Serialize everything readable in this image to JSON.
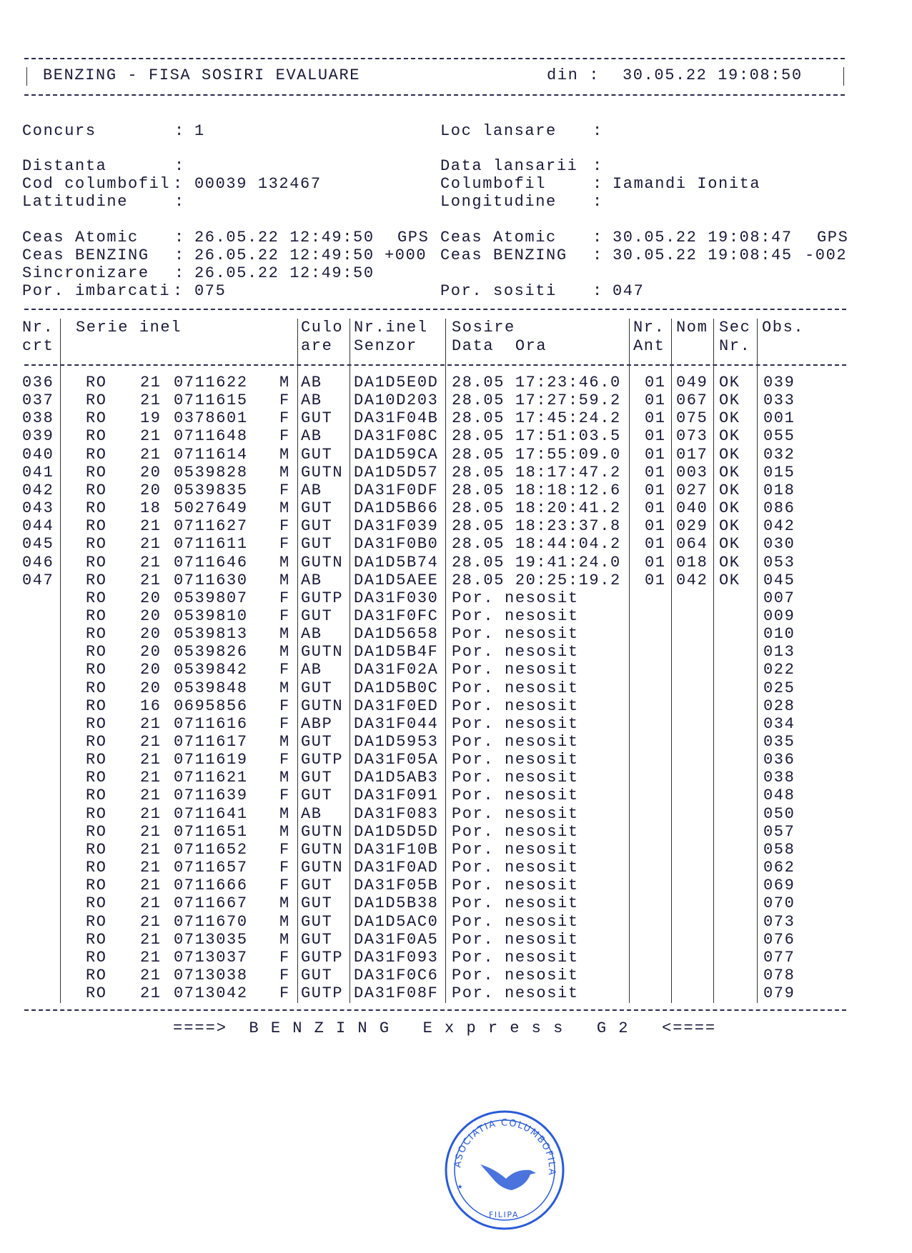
{
  "header": {
    "title": "BENZING - FISA SOSIRI EVALUARE",
    "din_label": "din :",
    "din_value": "30.05.22 19:08:50"
  },
  "info": {
    "concurs": {
      "label": "Concurs",
      "value": "1"
    },
    "loc_lansare": {
      "label": "Loc lansare",
      "value": ""
    },
    "distanta": {
      "label": "Distanta",
      "value": ""
    },
    "data_lansarii": {
      "label": "Data lansarii",
      "value": ""
    },
    "cod_columbofil": {
      "label": "Cod columbofil",
      "value": "00039 132467"
    },
    "columbofil": {
      "label": "Columbofil",
      "value": "Iamandi Ionita"
    },
    "latitudine": {
      "label": "Latitudine",
      "value": ""
    },
    "longitudine": {
      "label": "Longitudine",
      "value": ""
    },
    "ceas_atomic_start": {
      "label": "Ceas Atomic",
      "value": "26.05.22 12:49:50",
      "suffix": "GPS"
    },
    "ceas_benzing_start": {
      "label": "Ceas BENZING",
      "value": "26.05.22 12:49:50",
      "suffix": "+000"
    },
    "ceas_atomic_end": {
      "label": "Ceas Atomic",
      "value": "30.05.22 19:08:47",
      "suffix": "GPS"
    },
    "ceas_benzing_end": {
      "label": "Ceas BENZING",
      "value": "30.05.22 19:08:45",
      "suffix": "-002"
    },
    "sincronizare": {
      "label": "Sincronizare",
      "value": "26.05.22 12:49:50"
    },
    "por_imbarcati": {
      "label": "Por. imbarcati",
      "value": "075"
    },
    "por_sositi": {
      "label": "Por. sositi",
      "value": "047"
    }
  },
  "table": {
    "headers": {
      "nr1": "Nr.",
      "nr2": "crt",
      "serie": "Serie inel",
      "cul1": "Culo",
      "cul2": "are",
      "sen1": "Nr.inel",
      "sen2": "Senzor",
      "sos1": "Sosire",
      "sos2": "Data  Ora",
      "ant1": "Nr.",
      "ant2": "Ant",
      "nom": "Nom",
      "sec1": "Sec",
      "sec2": "Nr.",
      "obs": "Obs."
    },
    "rows": [
      [
        "036",
        "RO",
        "21",
        "0711622",
        "M",
        "AB",
        "DA1D5E0D",
        "28.05 17:23:46.0",
        "01",
        "049",
        "OK",
        "039"
      ],
      [
        "037",
        "RO",
        "21",
        "0711615",
        "F",
        "AB",
        "DA10D203",
        "28.05 17:27:59.2",
        "01",
        "067",
        "OK",
        "033"
      ],
      [
        "038",
        "RO",
        "19",
        "0378601",
        "F",
        "GUT",
        "DA31F04B",
        "28.05 17:45:24.2",
        "01",
        "075",
        "OK",
        "001"
      ],
      [
        "039",
        "RO",
        "21",
        "0711648",
        "F",
        "AB",
        "DA31F08C",
        "28.05 17:51:03.5",
        "01",
        "073",
        "OK",
        "055"
      ],
      [
        "040",
        "RO",
        "21",
        "0711614",
        "M",
        "GUT",
        "DA1D59CA",
        "28.05 17:55:09.0",
        "01",
        "017",
        "OK",
        "032"
      ],
      [
        "041",
        "RO",
        "20",
        "0539828",
        "M",
        "GUTN",
        "DA1D5D57",
        "28.05 18:17:47.2",
        "01",
        "003",
        "OK",
        "015"
      ],
      [
        "042",
        "RO",
        "20",
        "0539835",
        "F",
        "AB",
        "DA31F0DF",
        "28.05 18:18:12.6",
        "01",
        "027",
        "OK",
        "018"
      ],
      [
        "043",
        "RO",
        "18",
        "5027649",
        "M",
        "GUT",
        "DA1D5B66",
        "28.05 18:20:41.2",
        "01",
        "040",
        "OK",
        "086"
      ],
      [
        "044",
        "RO",
        "21",
        "0711627",
        "F",
        "GUT",
        "DA31F039",
        "28.05 18:23:37.8",
        "01",
        "029",
        "OK",
        "042"
      ],
      [
        "045",
        "RO",
        "21",
        "0711611",
        "F",
        "GUT",
        "DA31F0B0",
        "28.05 18:44:04.2",
        "01",
        "064",
        "OK",
        "030"
      ],
      [
        "046",
        "RO",
        "21",
        "0711646",
        "M",
        "GUTN",
        "DA1D5B74",
        "28.05 19:41:24.0",
        "01",
        "018",
        "OK",
        "053"
      ],
      [
        "047",
        "RO",
        "21",
        "0711630",
        "M",
        "AB",
        "DA1D5AEE",
        "28.05 20:25:19.2",
        "01",
        "042",
        "OK",
        "045"
      ],
      [
        "",
        "RO",
        "20",
        "0539807",
        "F",
        "GUTP",
        "DA31F030",
        "Por. nesosit",
        "",
        "",
        "",
        "007"
      ],
      [
        "",
        "RO",
        "20",
        "0539810",
        "F",
        "GUT",
        "DA31F0FC",
        "Por. nesosit",
        "",
        "",
        "",
        "009"
      ],
      [
        "",
        "RO",
        "20",
        "0539813",
        "M",
        "AB",
        "DA1D5658",
        "Por. nesosit",
        "",
        "",
        "",
        "010"
      ],
      [
        "",
        "RO",
        "20",
        "0539826",
        "M",
        "GUTN",
        "DA1D5B4F",
        "Por. nesosit",
        "",
        "",
        "",
        "013"
      ],
      [
        "",
        "RO",
        "20",
        "0539842",
        "F",
        "AB",
        "DA31F02A",
        "Por. nesosit",
        "",
        "",
        "",
        "022"
      ],
      [
        "",
        "RO",
        "20",
        "0539848",
        "M",
        "GUT",
        "DA1D5B0C",
        "Por. nesosit",
        "",
        "",
        "",
        "025"
      ],
      [
        "",
        "RO",
        "16",
        "0695856",
        "F",
        "GUTN",
        "DA31F0ED",
        "Por. nesosit",
        "",
        "",
        "",
        "028"
      ],
      [
        "",
        "RO",
        "21",
        "0711616",
        "F",
        "ABP",
        "DA31F044",
        "Por. nesosit",
        "",
        "",
        "",
        "034"
      ],
      [
        "",
        "RO",
        "21",
        "0711617",
        "M",
        "GUT",
        "DA1D5953",
        "Por. nesosit",
        "",
        "",
        "",
        "035"
      ],
      [
        "",
        "RO",
        "21",
        "0711619",
        "F",
        "GUTP",
        "DA31F05A",
        "Por. nesosit",
        "",
        "",
        "",
        "036"
      ],
      [
        "",
        "RO",
        "21",
        "0711621",
        "M",
        "GUT",
        "DA1D5AB3",
        "Por. nesosit",
        "",
        "",
        "",
        "038"
      ],
      [
        "",
        "RO",
        "21",
        "0711639",
        "F",
        "GUT",
        "DA31F091",
        "Por. nesosit",
        "",
        "",
        "",
        "048"
      ],
      [
        "",
        "RO",
        "21",
        "0711641",
        "M",
        "AB",
        "DA31F083",
        "Por. nesosit",
        "",
        "",
        "",
        "050"
      ],
      [
        "",
        "RO",
        "21",
        "0711651",
        "M",
        "GUTN",
        "DA1D5D5D",
        "Por. nesosit",
        "",
        "",
        "",
        "057"
      ],
      [
        "",
        "RO",
        "21",
        "0711652",
        "F",
        "GUTN",
        "DA31F10B",
        "Por. nesosit",
        "",
        "",
        "",
        "058"
      ],
      [
        "",
        "RO",
        "21",
        "0711657",
        "F",
        "GUTN",
        "DA31F0AD",
        "Por. nesosit",
        "",
        "",
        "",
        "062"
      ],
      [
        "",
        "RO",
        "21",
        "0711666",
        "F",
        "GUT",
        "DA31F05B",
        "Por. nesosit",
        "",
        "",
        "",
        "069"
      ],
      [
        "",
        "RO",
        "21",
        "0711667",
        "M",
        "GUT",
        "DA1D5B38",
        "Por. nesosit",
        "",
        "",
        "",
        "070"
      ],
      [
        "",
        "RO",
        "21",
        "0711670",
        "M",
        "GUT",
        "DA1D5AC0",
        "Por. nesosit",
        "",
        "",
        "",
        "073"
      ],
      [
        "",
        "RO",
        "21",
        "0713035",
        "M",
        "GUT",
        "DA31F0A5",
        "Por. nesosit",
        "",
        "",
        "",
        "076"
      ],
      [
        "",
        "RO",
        "21",
        "0713037",
        "F",
        "GUTP",
        "DA31F093",
        "Por. nesosit",
        "",
        "",
        "",
        "077"
      ],
      [
        "",
        "RO",
        "21",
        "0713038",
        "F",
        "GUT",
        "DA31F0C6",
        "Por. nesosit",
        "",
        "",
        "",
        "078"
      ],
      [
        "",
        "RO",
        "21",
        "0713042",
        "F",
        "GUTP",
        "DA31F08F",
        "Por. nesosit",
        "",
        "",
        "",
        "079"
      ]
    ]
  },
  "footer": {
    "text": "====>  B E N Z I N G   E x p r e s s   G 2   <===="
  },
  "stamp": {
    "text": "ASOCIATIA COLUMBOFILA",
    "bottom": "FILIPA",
    "color": "#2a5bd7"
  }
}
